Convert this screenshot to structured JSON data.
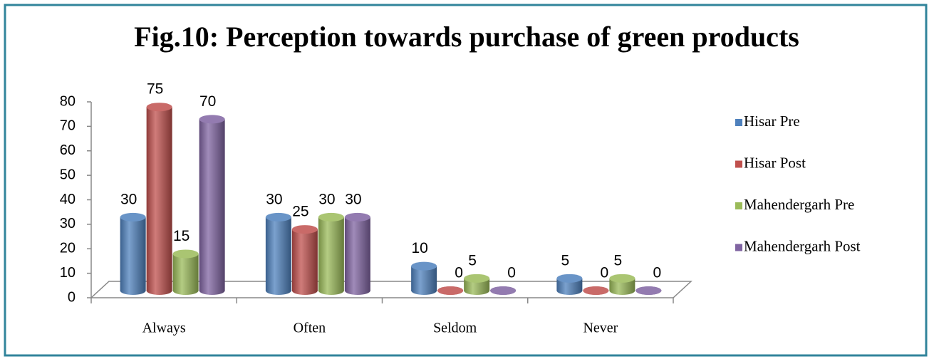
{
  "chart_data": {
    "type": "bar",
    "title": "Fig.10: Perception towards purchase of green products",
    "categories": [
      "Always",
      "Often",
      "Seldom",
      "Never"
    ],
    "series": [
      {
        "name": "Hisar Pre",
        "color": "#4f81bd",
        "values": [
          30,
          30,
          10,
          5
        ]
      },
      {
        "name": "Hisar Post",
        "color": "#c0504d",
        "values": [
          75,
          25,
          0,
          0
        ]
      },
      {
        "name": "Mahendergarh Pre",
        "color": "#9bbb59",
        "values": [
          15,
          30,
          5,
          5
        ]
      },
      {
        "name": "Mahendergarh Post",
        "color": "#8064a2",
        "values": [
          70,
          30,
          0,
          0
        ]
      }
    ],
    "ylim": [
      0,
      80
    ],
    "yticks": [
      0,
      10,
      20,
      30,
      40,
      50,
      60,
      70,
      80
    ],
    "legend": "right",
    "grid": false
  }
}
